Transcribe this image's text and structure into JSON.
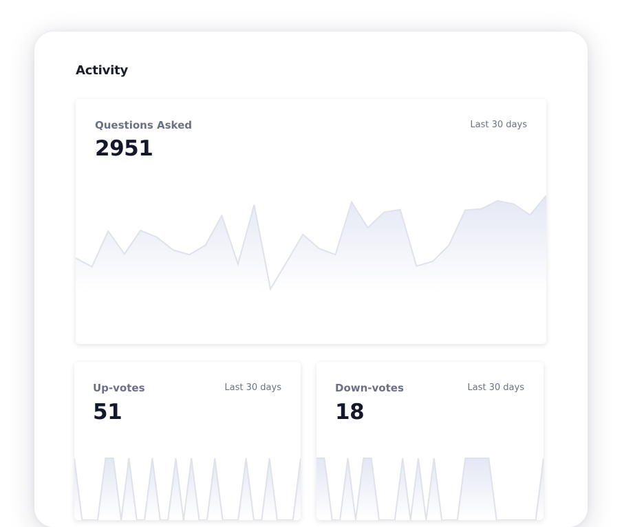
{
  "activity": {
    "title": "Activity",
    "cards": {
      "questions": {
        "label": "Questions Asked",
        "period": "Last 30 days",
        "value": "2951",
        "series": [
          50,
          37,
          90,
          56,
          91,
          81,
          62,
          55,
          69,
          113,
          41,
          129,
          4,
          44,
          85,
          64,
          55,
          133,
          95,
          118,
          122,
          38,
          45,
          69,
          121,
          123,
          135,
          130,
          114,
          143
        ]
      },
      "upvotes": {
        "label": "Up-votes",
        "period": "Last 30 days",
        "value": "51",
        "series": [
          1,
          0,
          0,
          0,
          1,
          1,
          0,
          1,
          0,
          0,
          1,
          0,
          0,
          1,
          0,
          1,
          0,
          0,
          1,
          0,
          0,
          0,
          1,
          0,
          0,
          1,
          0,
          0,
          0,
          1
        ]
      },
      "downvotes": {
        "label": "Down-votes",
        "period": "Last 30 days",
        "value": "18",
        "series": [
          1,
          1,
          0,
          0,
          1,
          0,
          1,
          1,
          0,
          0,
          0,
          1,
          0,
          1,
          0,
          1,
          0,
          0,
          0,
          1,
          1,
          1,
          1,
          0,
          0,
          0,
          0,
          0,
          0,
          1
        ]
      }
    }
  },
  "colors": {
    "area_top": "#e4e7f4",
    "area_bottom": "#ffffff",
    "line": "#dfe2ea",
    "value_text": "#14182a",
    "label_text": "#6b7184"
  }
}
